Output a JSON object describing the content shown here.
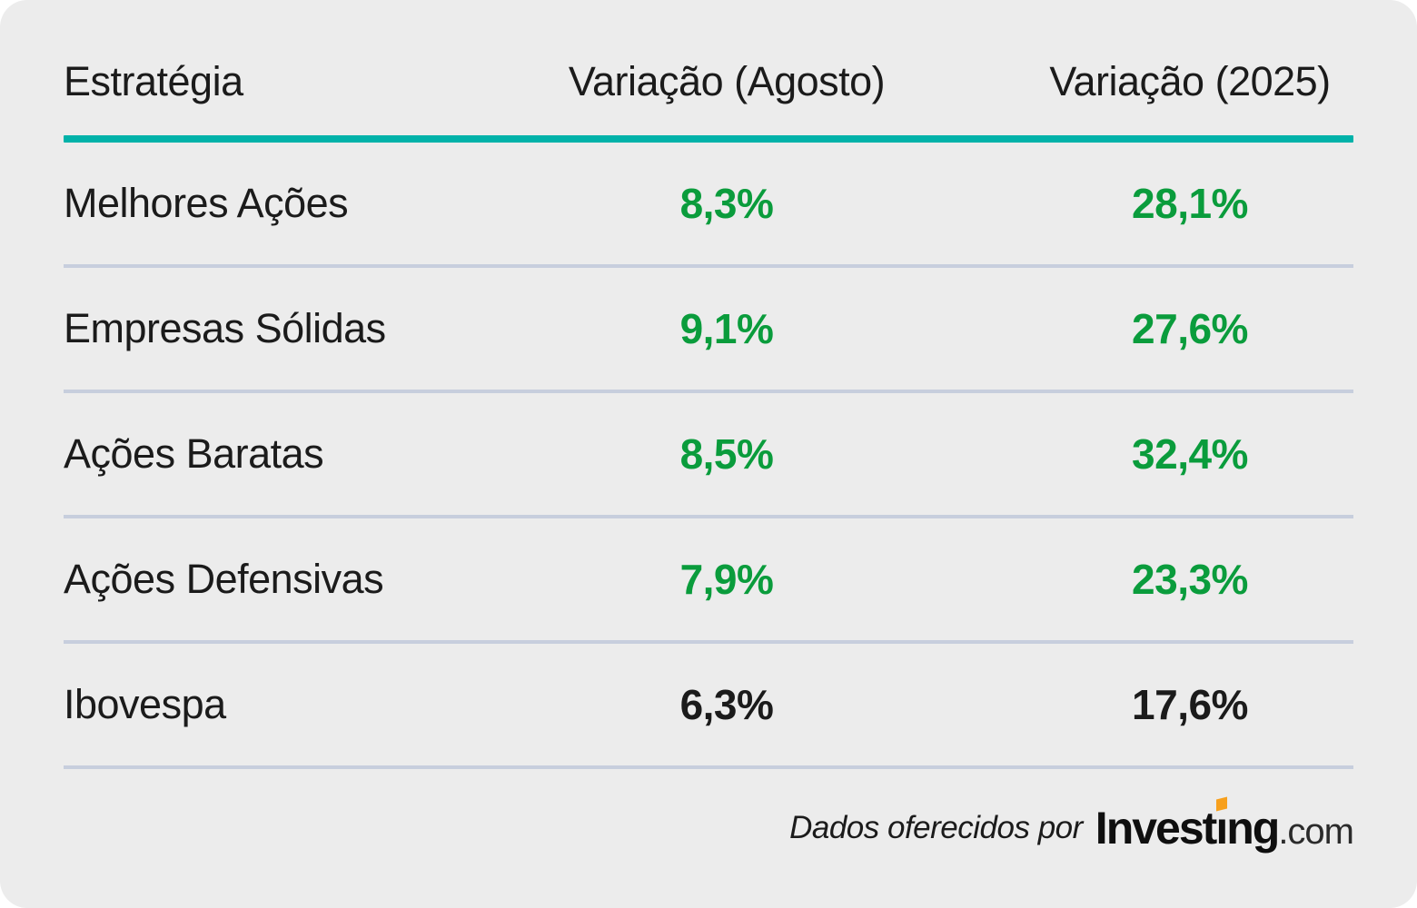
{
  "chart_data": {
    "type": "table",
    "columns": [
      "Estratégia",
      "Variação (Agosto)",
      "Variação (2025)"
    ],
    "rows": [
      {
        "strategy": "Melhores Ações",
        "variation_august": "8,3%",
        "variation_2025": "28,1%",
        "value_color": "green"
      },
      {
        "strategy": "Empresas Sólidas",
        "variation_august": "9,1%",
        "variation_2025": "27,6%",
        "value_color": "green"
      },
      {
        "strategy": "Ações Baratas",
        "variation_august": "8,5%",
        "variation_2025": "32,4%",
        "value_color": "green"
      },
      {
        "strategy": "Ações Defensivas",
        "variation_august": "7,9%",
        "variation_2025": "23,3%",
        "value_color": "green"
      },
      {
        "strategy": "Ibovespa",
        "variation_august": "6,3%",
        "variation_2025": "17,6%",
        "value_color": "black"
      }
    ],
    "layout": {
      "header_rule": true,
      "row_dividers": true,
      "grid": "off",
      "legend": "none"
    }
  },
  "footer": {
    "attribution": "Dados oferecidos por",
    "logo_invest": "Invest",
    "logo_dotless_i": "ı",
    "logo_ng": "ng",
    "logo_domain": ".com"
  },
  "colors": {
    "card_background": "#ececec",
    "accent_teal": "#00b2a9",
    "positive_green": "#0a9c3c",
    "neutral_black": "#1b1b1b",
    "divider": "#c7cedd",
    "logo_orange": "#f7a01d"
  }
}
